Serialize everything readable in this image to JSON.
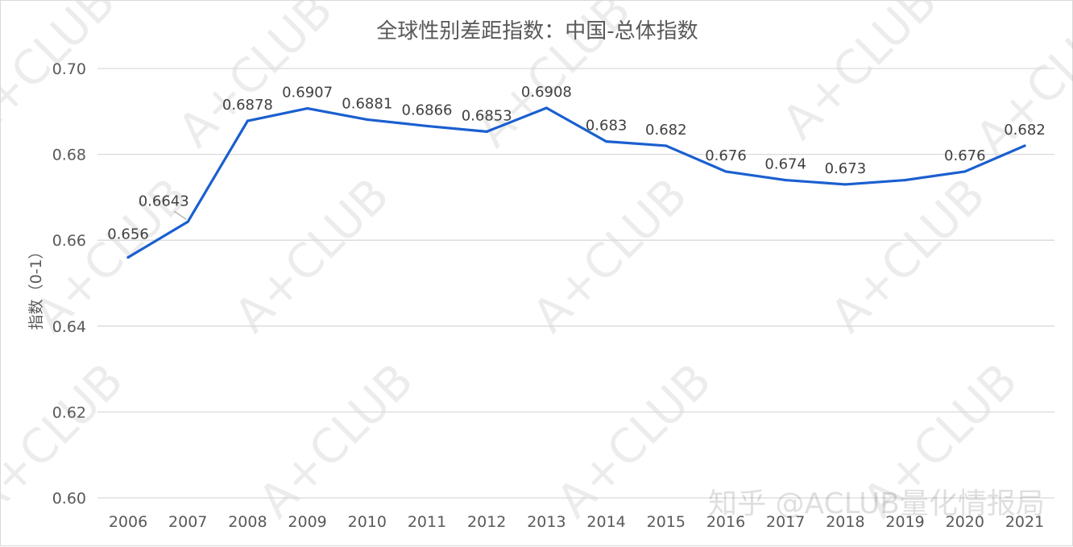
{
  "chart_data": {
    "type": "line",
    "title": "全球性别差距指数：中国-总体指数",
    "xlabel": "",
    "ylabel": "指数（0-1）",
    "ylim": [
      0.6,
      0.7
    ],
    "yticks": [
      "0.60",
      "0.62",
      "0.64",
      "0.66",
      "0.68",
      "0.70"
    ],
    "grid": true,
    "legend": "none",
    "categories": [
      "2006",
      "2007",
      "2008",
      "2009",
      "2010",
      "2011",
      "2012",
      "2013",
      "2014",
      "2015",
      "2016",
      "2017",
      "2018",
      "2019",
      "2020",
      "2021"
    ],
    "series": [
      {
        "values": [
          0.656,
          0.6643,
          0.6878,
          0.6907,
          0.6881,
          0.6866,
          0.6853,
          0.6908,
          0.683,
          0.682,
          0.676,
          0.674,
          0.673,
          0.674,
          0.676,
          0.682
        ],
        "data_labels": [
          "0.656",
          "0.6643",
          "0.6878",
          "0.6907",
          "0.6881",
          "0.6866",
          "0.6853",
          "0.6908",
          "0.683",
          "0.682",
          "0.676",
          "0.674",
          "0.673",
          "",
          "0.676",
          "0.682"
        ],
        "color": "#1a5fd0"
      }
    ]
  },
  "watermark": {
    "text": "A+CLUB",
    "site": "知乎 @ACLUB量化情报局"
  },
  "colors": {
    "line": "#1a5fd0",
    "grid": "#d9d9d9",
    "text": "#595959"
  }
}
